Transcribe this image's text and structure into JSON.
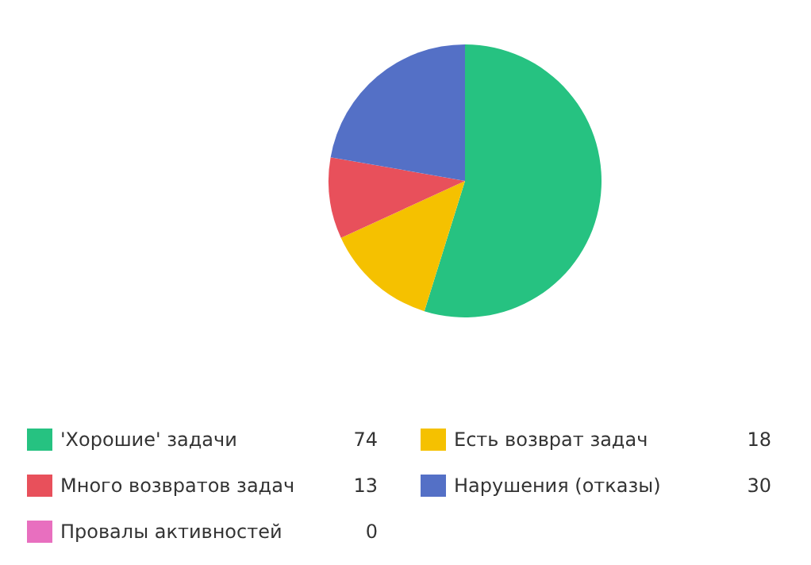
{
  "chart_data": {
    "type": "pie",
    "categories": [
      "'Хорошие' задачи",
      "Есть возврат задач",
      "Много возвратов задач",
      "Нарушения (отказы)",
      "Провалы активностей"
    ],
    "values": [
      74,
      18,
      13,
      30,
      0
    ],
    "colors": [
      "#26c281",
      "#f5c100",
      "#e8505b",
      "#5470c6",
      "#e86fbf"
    ],
    "value_labels": [
      "74",
      "18",
      "13",
      "30",
      "0"
    ],
    "legend": "bottom"
  }
}
